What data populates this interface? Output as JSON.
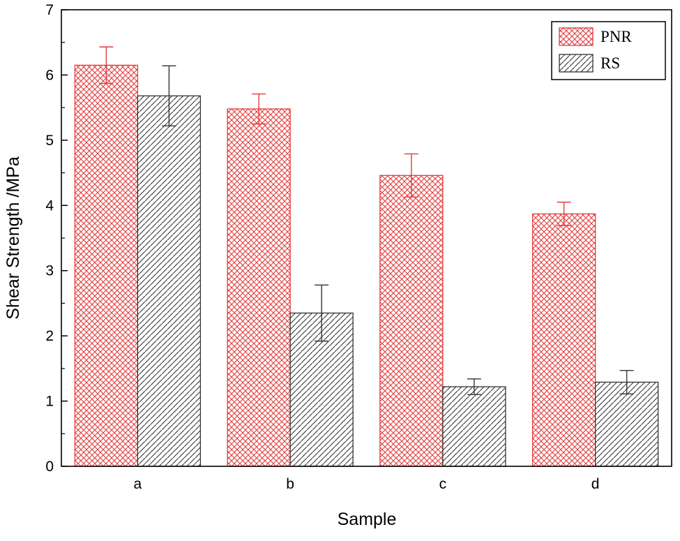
{
  "figure": {
    "background": "#ffffff",
    "frame_color": "#000000"
  },
  "chart_data": {
    "type": "bar",
    "title": "",
    "xlabel": "Sample",
    "ylabel": "Shear Strength /MPa",
    "categories": [
      "a",
      "b",
      "c",
      "d"
    ],
    "series": [
      {
        "name": "PNR",
        "color": "#e23b3c",
        "hatch": "cross",
        "values": [
          6.15,
          5.48,
          4.46,
          3.87
        ],
        "errors": [
          0.28,
          0.23,
          0.33,
          0.18
        ]
      },
      {
        "name": "RS",
        "color": "#333333",
        "hatch": "diagonal",
        "values": [
          5.68,
          2.35,
          1.22,
          1.29
        ],
        "errors": [
          0.46,
          0.43,
          0.12,
          0.18
        ]
      }
    ],
    "ylim": [
      0,
      7
    ],
    "ytick_major": 1,
    "ytick_minor": 0.5,
    "grid": false,
    "legend_position": "top-right"
  }
}
